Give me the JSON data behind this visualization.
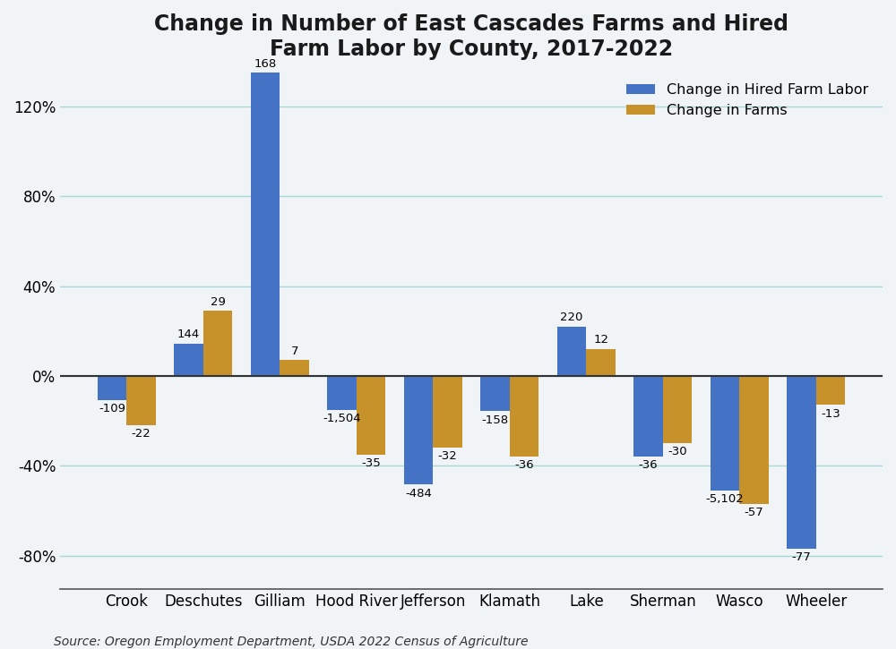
{
  "title": "Change in Number of East Cascades Farms and Hired\nFarm Labor by County, 2017-2022",
  "title_fontsize": 17,
  "categories": [
    "Crook",
    "Deschutes",
    "Gilliam",
    "Hood River",
    "Jefferson",
    "Klamath",
    "Lake",
    "Sherman",
    "Wasco",
    "Wheeler"
  ],
  "hired_labor_pct": [
    -0.109,
    0.144,
    1.68,
    -0.1504,
    -0.484,
    -0.158,
    0.22,
    -0.36,
    -0.5102,
    -0.77
  ],
  "farms_pct": [
    -0.22,
    0.29,
    0.07,
    -0.35,
    -0.32,
    -0.36,
    0.12,
    -0.3,
    -0.57,
    -0.13
  ],
  "hired_labor_labels": [
    "-109",
    "144",
    "168",
    "-1,504",
    "-484",
    "-158",
    "220",
    "-36",
    "-5,102",
    "-77"
  ],
  "farms_labels": [
    "-22",
    "29",
    "7",
    "-35",
    "-32",
    "-36",
    "12",
    "-30",
    "-57",
    "-13"
  ],
  "color_labor": "#4472C4",
  "color_farms": "#C8922A",
  "legend_labor": "Change in Hired Farm Labor",
  "legend_farms": "Change in Farms",
  "ylim": [
    -0.95,
    1.35
  ],
  "yticks": [
    -0.8,
    -0.4,
    0.0,
    0.4,
    0.8,
    1.2
  ],
  "source": "Source: Oregon Employment Department, USDA 2022 Census of Agriculture",
  "background_color": "#F0F4F7",
  "grid_color": "#A8D8D8",
  "bar_width": 0.38
}
